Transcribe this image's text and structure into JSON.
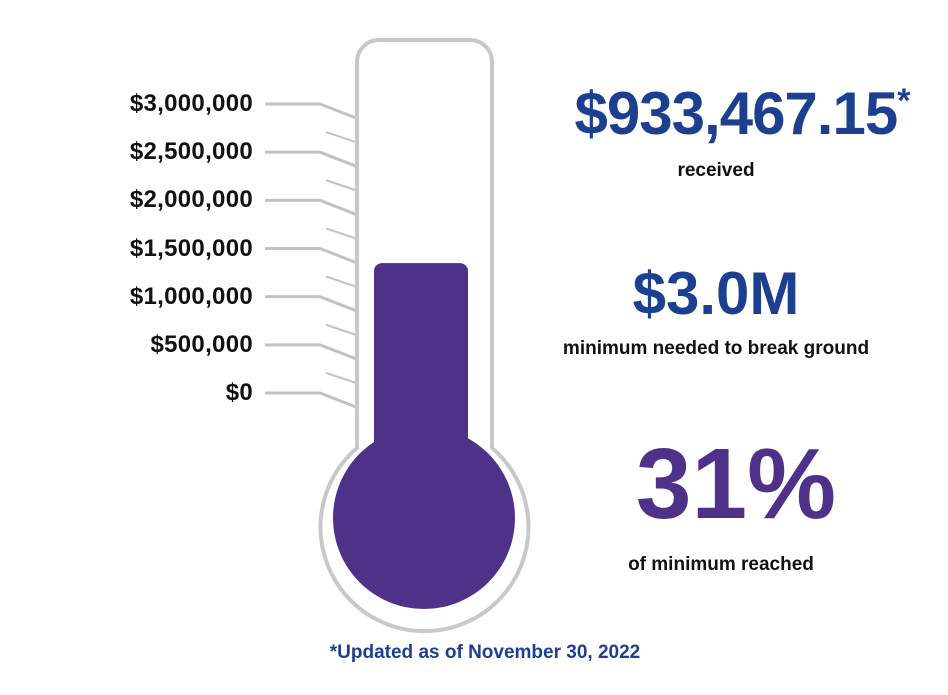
{
  "colors": {
    "fill": "#4e3289",
    "accent_blue": "#1c3f8f",
    "tube_outline": "#c8c8c8",
    "tick_line": "#c2c2c2",
    "text_dark": "#111111"
  },
  "chart_data": {
    "type": "thermometer",
    "tick_labels": [
      "$3,000,000",
      "$2,500,000",
      "$2,000,000",
      "$1,500,000",
      "$1,000,000",
      "$500,000",
      "$0"
    ],
    "tick_values": [
      3000000,
      2500000,
      2000000,
      1500000,
      1000000,
      500000,
      0
    ],
    "value": 933467.15,
    "goal": 3000000,
    "ylim": [
      0,
      3000000
    ]
  },
  "stats": {
    "received": {
      "amount": "$933,467.15",
      "marker": "*",
      "caption": "received"
    },
    "goal": {
      "amount": "$3.0M",
      "caption": "minimum needed to break ground"
    },
    "percent": {
      "value": "31%",
      "caption": "of minimum reached"
    }
  },
  "footnote": "*Updated as of November 30, 2022"
}
